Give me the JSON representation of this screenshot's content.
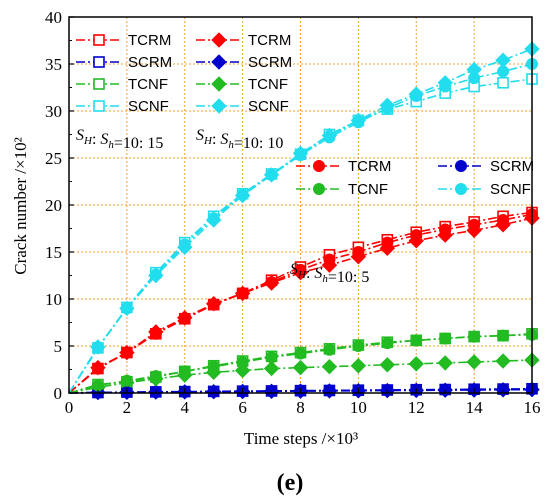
{
  "chart_data": {
    "type": "line",
    "xlabel": "Time steps /×10³",
    "ylabel": "Crack number /×10²",
    "xlim": [
      0,
      16
    ],
    "ylim": [
      0,
      40
    ],
    "x_ticks": [
      0,
      2,
      4,
      6,
      8,
      10,
      12,
      14,
      16
    ],
    "y_ticks": [
      0,
      5,
      10,
      15,
      20,
      25,
      30,
      35,
      40
    ],
    "grid": true,
    "panel_label": "(e)",
    "groups": [
      {
        "ratio_label": "S_H: S_h=10: 15",
        "marker": "square-open",
        "series": [
          {
            "name": "TCRM",
            "color": "#ff0000",
            "x": [
              0,
              1,
              2,
              3,
              4,
              5,
              6,
              7,
              8,
              9,
              10,
              11,
              12,
              13,
              14,
              15,
              16
            ],
            "y": [
              0,
              2.6,
              4.3,
              6.3,
              7.9,
              9.4,
              10.6,
              12.0,
              13.4,
              14.7,
              15.5,
              16.3,
              17.1,
              17.7,
              18.2,
              18.8,
              19.2
            ]
          },
          {
            "name": "SCRM",
            "color": "#0000cc",
            "x": [
              0,
              1,
              2,
              3,
              4,
              5,
              6,
              7,
              8,
              9,
              10,
              11,
              12,
              13,
              14,
              15,
              16
            ],
            "y": [
              0,
              0.05,
              0.1,
              0.12,
              0.15,
              0.17,
              0.2,
              0.22,
              0.25,
              0.27,
              0.3,
              0.32,
              0.35,
              0.37,
              0.4,
              0.42,
              0.45
            ]
          },
          {
            "name": "TCNF",
            "color": "#22bb22",
            "x": [
              0,
              1,
              2,
              3,
              4,
              5,
              6,
              7,
              8,
              9,
              10,
              11,
              12,
              13,
              14,
              15,
              16
            ],
            "y": [
              0,
              0.9,
              1.2,
              1.7,
              2.3,
              2.9,
              3.4,
              3.9,
              4.3,
              4.7,
              5.1,
              5.4,
              5.6,
              5.8,
              6.0,
              6.1,
              6.3
            ]
          },
          {
            "name": "SCNF",
            "color": "#22ddee",
            "x": [
              0,
              1,
              2,
              3,
              4,
              5,
              6,
              7,
              8,
              9,
              10,
              11,
              12,
              13,
              14,
              15,
              16
            ],
            "y": [
              0,
              4.8,
              9.1,
              12.8,
              16.0,
              18.8,
              21.2,
              23.3,
              25.4,
              27.5,
              29.0,
              30.2,
              31.0,
              31.9,
              32.6,
              33.0,
              33.4
            ]
          }
        ]
      },
      {
        "ratio_label": "S_H: S_h=10: 10",
        "marker": "diamond-filled",
        "series": [
          {
            "name": "TCRM",
            "color": "#ff0000",
            "x": [
              0,
              1,
              2,
              3,
              4,
              5,
              6,
              7,
              8,
              9,
              10,
              11,
              12,
              13,
              14,
              15,
              16
            ],
            "y": [
              0,
              2.7,
              4.3,
              6.5,
              8.0,
              9.5,
              10.6,
              11.7,
              12.8,
              13.6,
              14.5,
              15.4,
              16.2,
              16.8,
              17.3,
              17.9,
              18.6
            ]
          },
          {
            "name": "SCRM",
            "color": "#0000cc",
            "x": [
              0,
              1,
              2,
              3,
              4,
              5,
              6,
              7,
              8,
              9,
              10,
              11,
              12,
              13,
              14,
              15,
              16
            ],
            "y": [
              0,
              0.05,
              0.07,
              0.1,
              0.12,
              0.14,
              0.16,
              0.18,
              0.2,
              0.22,
              0.24,
              0.26,
              0.28,
              0.3,
              0.32,
              0.34,
              0.36
            ]
          },
          {
            "name": "TCNF",
            "color": "#22bb22",
            "x": [
              0,
              1,
              2,
              3,
              4,
              5,
              6,
              7,
              8,
              9,
              10,
              11,
              12,
              13,
              14,
              15,
              16
            ],
            "y": [
              0,
              0.6,
              1.1,
              1.5,
              1.9,
              2.2,
              2.4,
              2.6,
              2.7,
              2.8,
              2.9,
              3.0,
              3.1,
              3.2,
              3.3,
              3.4,
              3.5
            ]
          },
          {
            "name": "SCNF",
            "color": "#22ddee",
            "x": [
              0,
              1,
              2,
              3,
              4,
              5,
              6,
              7,
              8,
              9,
              10,
              11,
              12,
              13,
              14,
              15,
              16
            ],
            "y": [
              0,
              4.9,
              9.0,
              12.5,
              15.5,
              18.4,
              21.0,
              23.2,
              25.5,
              27.4,
              29.0,
              30.6,
              31.8,
              33.0,
              34.4,
              35.4,
              36.6
            ]
          }
        ]
      },
      {
        "ratio_label": "S_H: S_h=10: 5",
        "marker": "circle-filled",
        "series": [
          {
            "name": "TCRM",
            "color": "#ff0000",
            "x": [
              0,
              1,
              2,
              3,
              4,
              5,
              6,
              7,
              8,
              9,
              10,
              11,
              12,
              13,
              14,
              15,
              16
            ],
            "y": [
              0,
              2.6,
              4.3,
              6.3,
              7.9,
              9.4,
              10.6,
              11.8,
              13.1,
              14.2,
              15.0,
              16.0,
              16.8,
              17.4,
              17.9,
              18.4,
              19.0
            ]
          },
          {
            "name": "SCRM",
            "color": "#0000cc",
            "x": [
              0,
              1,
              2,
              3,
              4,
              5,
              6,
              7,
              8,
              9,
              10,
              11,
              12,
              13,
              14,
              15,
              16
            ],
            "y": [
              0,
              0.05,
              0.08,
              0.1,
              0.12,
              0.15,
              0.17,
              0.2,
              0.22,
              0.25,
              0.27,
              0.3,
              0.32,
              0.34,
              0.36,
              0.38,
              0.4
            ]
          },
          {
            "name": "TCNF",
            "color": "#22bb22",
            "x": [
              0,
              1,
              2,
              3,
              4,
              5,
              6,
              7,
              8,
              9,
              10,
              11,
              12,
              13,
              14,
              15,
              16
            ],
            "y": [
              0,
              0.8,
              1.3,
              1.8,
              2.3,
              2.8,
              3.3,
              3.8,
              4.2,
              4.6,
              5.0,
              5.3,
              5.6,
              5.8,
              6.0,
              6.1,
              6.2
            ]
          },
          {
            "name": "SCNF",
            "color": "#22ddee",
            "x": [
              0,
              1,
              2,
              3,
              4,
              5,
              6,
              7,
              8,
              9,
              10,
              11,
              12,
              13,
              14,
              15,
              16
            ],
            "y": [
              0,
              4.8,
              9.0,
              12.6,
              15.8,
              18.6,
              21.1,
              23.2,
              25.3,
              27.2,
              28.8,
              30.3,
              31.6,
              32.6,
              33.5,
              34.2,
              35.0
            ]
          }
        ]
      }
    ]
  }
}
